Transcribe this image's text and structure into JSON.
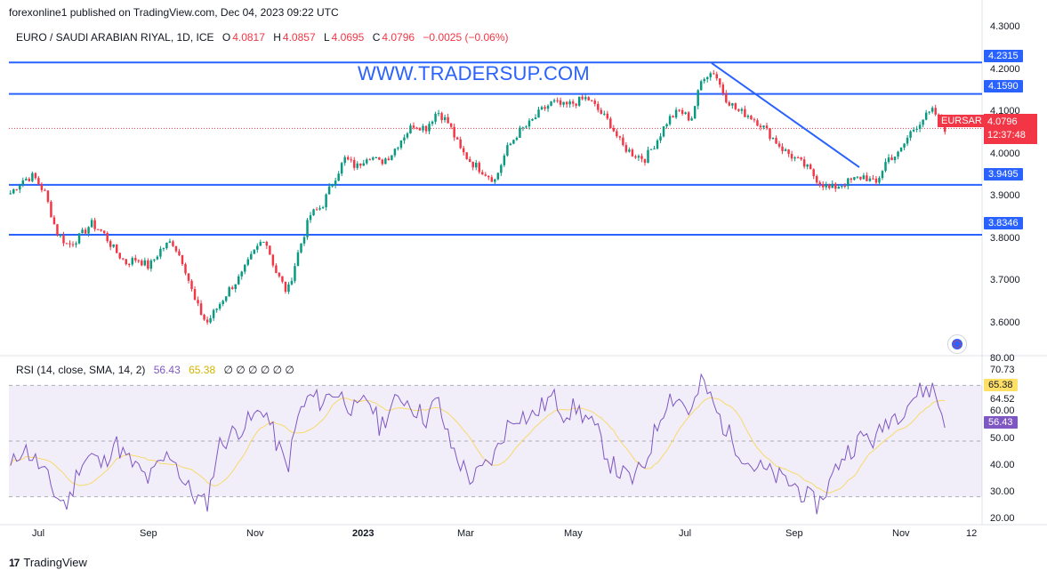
{
  "header": {
    "publisher": "forexonline1 published on TradingView.com, Dec 04, 2023 09:22 UTC"
  },
  "legend": {
    "symbol": "EURO / SAUDI ARABIAN RIYAL, 1D, ICE",
    "o_label": "O",
    "o_value": "4.0817",
    "h_label": "H",
    "h_value": "4.0857",
    "l_label": "L",
    "l_value": "4.0695",
    "c_label": "C",
    "c_value": "4.0796",
    "change": "−0.0025 (−0.06%)"
  },
  "watermark": "WWW.TRADERSUP.COM",
  "price_tag": {
    "symbol": "EURSAR",
    "price": "4.0796",
    "countdown": "12:37:48"
  },
  "level_tags": [
    "4.2315",
    "4.1590",
    "3.9495",
    "3.8346"
  ],
  "price_axis": [
    "4.3000",
    "4.2000",
    "4.1000",
    "4.0000",
    "3.9000",
    "3.8000",
    "3.7000",
    "3.6000"
  ],
  "rsi": {
    "label": "RSI (14, close, SMA, 14, 2)",
    "value": "56.43",
    "sma_value": "65.38",
    "na": "∅ ∅ ∅ ∅ ∅ ∅"
  },
  "rsi_axis": [
    "80.00",
    "70.73",
    "64.52",
    "60.00",
    "50.00",
    "40.00",
    "30.00",
    "20.00"
  ],
  "time_axis": [
    "Jul",
    "Sep",
    "Nov",
    "2023",
    "Mar",
    "May",
    "Jul",
    "Sep",
    "Nov",
    "12"
  ],
  "brand": {
    "name": "TradingView",
    "logo": "17"
  },
  "colors": {
    "up": "#089981",
    "down": "#f23645",
    "level": "#2962ff",
    "rsi": "#7e57c2",
    "rsi_sma": "#f7d96b"
  },
  "chart_data": {
    "type": "candlestick",
    "title": "EURO / SAUDI ARABIAN RIYAL, 1D, ICE",
    "ylim": [
      3.56,
      4.32
    ],
    "horizontal_levels": [
      4.2315,
      4.159,
      3.9495,
      3.8346
    ],
    "trendline": {
      "from": 4.23,
      "to": 3.99
    },
    "close_guide": 4.0796,
    "anchors_close": [
      3.93,
      3.96,
      3.97,
      3.93,
      3.84,
      3.81,
      3.83,
      3.86,
      3.84,
      3.8,
      3.77,
      3.78,
      3.76,
      3.8,
      3.82,
      3.77,
      3.68,
      3.63,
      3.67,
      3.71,
      3.74,
      3.79,
      3.83,
      3.75,
      3.7,
      3.8,
      3.88,
      3.9,
      3.96,
      4.01,
      3.99,
      4.02,
      4.0,
      4.02,
      4.06,
      4.09,
      4.08,
      4.12,
      4.09,
      4.03,
      4.0,
      3.98,
      3.96,
      4.03,
      4.07,
      4.09,
      4.12,
      4.14,
      4.13,
      4.14,
      4.15,
      4.12,
      4.09,
      4.04,
      4.02,
      4.01,
      4.05,
      4.1,
      4.12,
      4.1,
      4.2,
      4.21,
      4.15,
      4.12,
      4.11,
      4.09,
      4.06,
      4.03,
      4.01,
      3.99,
      3.96,
      3.94,
      3.95,
      3.96,
      3.97,
      3.95,
      4.01,
      4.02,
      4.07,
      4.1,
      4.12,
      4.08
    ],
    "rsi": {
      "ylim": [
        20,
        80
      ],
      "bands": [
        30,
        50,
        70
      ],
      "anchors": [
        40,
        48,
        44,
        38,
        30,
        27,
        42,
        45,
        41,
        50,
        44,
        40,
        36,
        42,
        46,
        35,
        30,
        27,
        48,
        52,
        55,
        58,
        62,
        50,
        40,
        60,
        66,
        64,
        68,
        65,
        60,
        66,
        55,
        62,
        66,
        62,
        58,
        65,
        50,
        42,
        36,
        40,
        45,
        55,
        60,
        58,
        62,
        66,
        60,
        62,
        58,
        52,
        42,
        38,
        36,
        42,
        55,
        66,
        65,
        60,
        72,
        62,
        54,
        48,
        42,
        40,
        38,
        36,
        34,
        30,
        27,
        35,
        44,
        48,
        52,
        50,
        58,
        60,
        65,
        68,
        69,
        56.43
      ]
    }
  }
}
